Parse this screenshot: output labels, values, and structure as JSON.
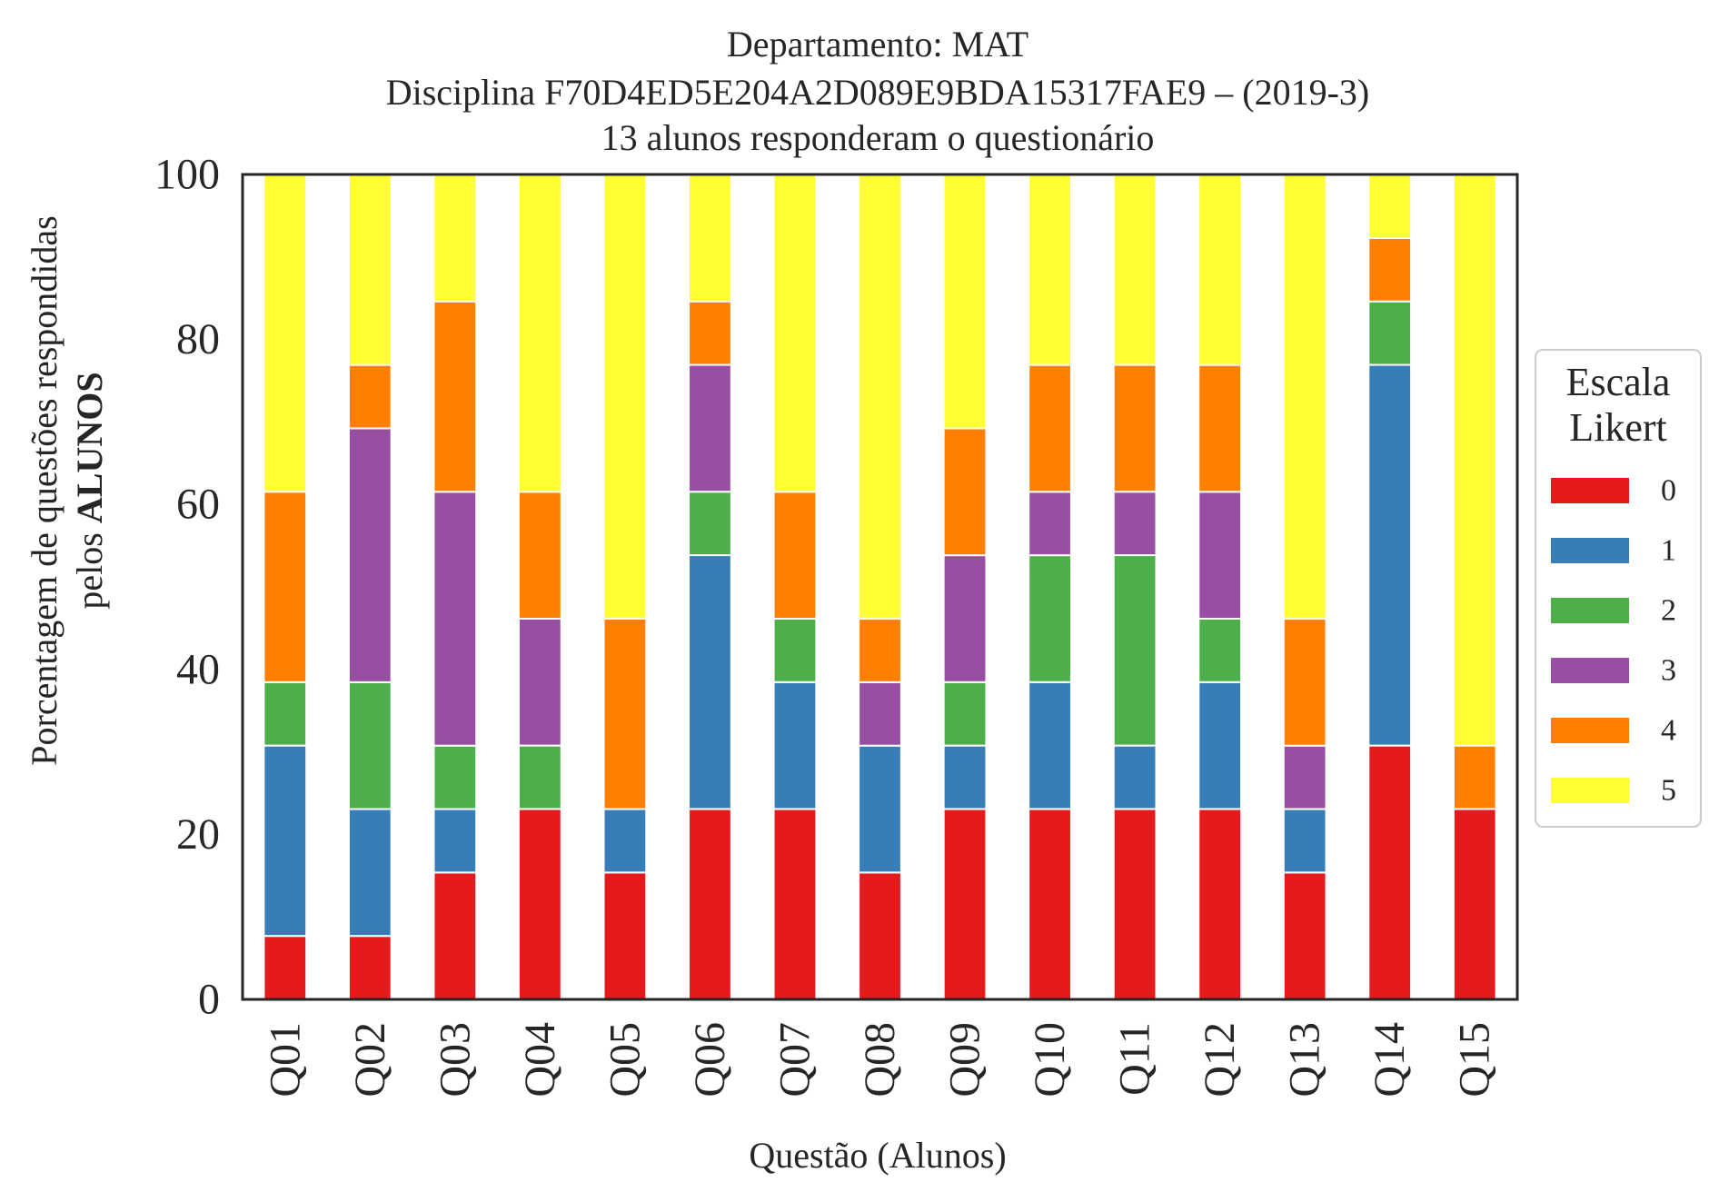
{
  "chart_data": {
    "type": "bar",
    "stacked": true,
    "title_lines": [
      "Departamento: MAT",
      "Disciplina F70D4ED5E204A2D089E9BDA15317FAE9 – (2019-3)",
      "13 alunos responderam o questionário"
    ],
    "xlabel": "Questão (Alunos)",
    "ylabel_line1": "Porcentagem de questões respondidas",
    "ylabel_line2_prefix": "pelos ",
    "ylabel_line2_bold": "ALUNOS",
    "ylim": [
      0,
      100
    ],
    "yticks": [
      "0",
      "20",
      "40",
      "60",
      "80",
      "100"
    ],
    "grid": false,
    "legend": {
      "title_line1": "Escala",
      "title_line2": "Likert",
      "placement": "right"
    },
    "categories": [
      "Q01",
      "Q02",
      "Q03",
      "Q04",
      "Q05",
      "Q06",
      "Q07",
      "Q08",
      "Q09",
      "Q10",
      "Q11",
      "Q12",
      "Q13",
      "Q14",
      "Q15"
    ],
    "series": [
      {
        "name": "0",
        "color": "#e41a1c",
        "values": [
          7.69,
          7.69,
          15.38,
          23.08,
          15.38,
          23.08,
          23.08,
          15.38,
          23.08,
          23.08,
          23.08,
          23.08,
          15.38,
          30.77,
          23.08
        ]
      },
      {
        "name": "1",
        "color": "#377eb8",
        "values": [
          23.08,
          15.38,
          7.69,
          0,
          7.69,
          30.77,
          15.38,
          15.38,
          7.69,
          15.38,
          7.69,
          15.38,
          7.69,
          46.15,
          0
        ]
      },
      {
        "name": "2",
        "color": "#4daf4a",
        "values": [
          7.69,
          15.38,
          7.69,
          7.69,
          0,
          7.69,
          7.69,
          0,
          7.69,
          15.38,
          23.08,
          7.69,
          0,
          7.69,
          0
        ]
      },
      {
        "name": "3",
        "color": "#984ea3",
        "values": [
          0,
          30.77,
          30.77,
          15.38,
          0,
          15.38,
          0,
          7.69,
          15.38,
          7.69,
          7.69,
          15.38,
          7.69,
          0,
          0
        ]
      },
      {
        "name": "4",
        "color": "#ff7f00",
        "values": [
          23.08,
          7.69,
          23.08,
          15.38,
          23.08,
          7.69,
          15.38,
          7.69,
          15.38,
          15.38,
          15.38,
          15.38,
          15.38,
          7.69,
          7.69
        ]
      },
      {
        "name": "5",
        "color": "#ffff33",
        "values": [
          38.46,
          23.08,
          15.38,
          38.46,
          53.85,
          15.38,
          38.46,
          53.85,
          30.77,
          23.08,
          23.08,
          23.08,
          53.85,
          7.69,
          69.23
        ]
      }
    ]
  }
}
